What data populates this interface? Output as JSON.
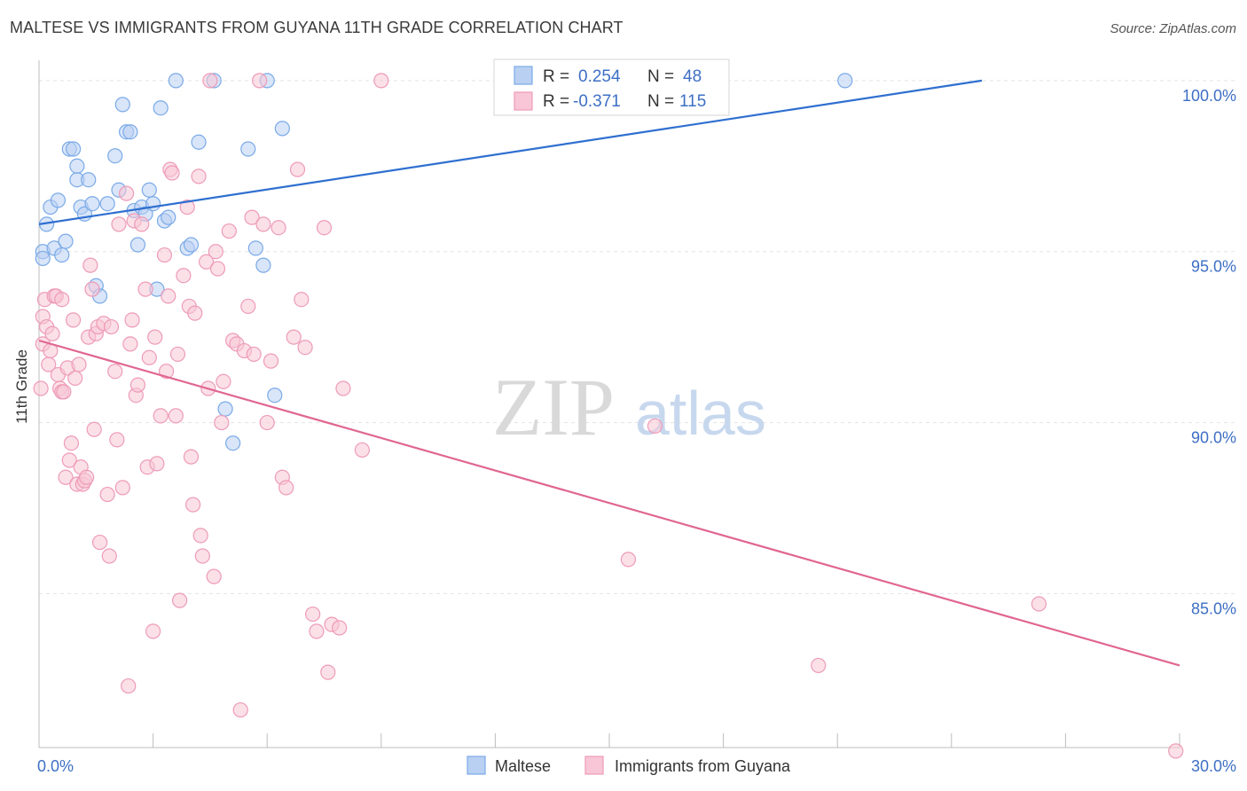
{
  "chart_data": {
    "type": "scatter",
    "title": "MALTESE VS IMMIGRANTS FROM GUYANA 11TH GRADE CORRELATION CHART",
    "source": "Source: ZipAtlas.com",
    "xlabel": "",
    "ylabel": "11th Grade",
    "xlim": [
      0,
      30
    ],
    "ylim": [
      80.5,
      100.8
    ],
    "x_tick_labels": [
      "0.0%",
      "30.0%"
    ],
    "y_ticks": [
      {
        "value": 100,
        "label": "100.0%"
      },
      {
        "value": 95,
        "label": "95.0%"
      },
      {
        "value": 90,
        "label": "90.0%"
      },
      {
        "value": 85,
        "label": "85.0%"
      }
    ],
    "watermark": {
      "zip": "ZIP",
      "atlas": "atlas"
    },
    "legend_top": [
      {
        "r_label": "R =",
        "r_value": "0.254",
        "n_label": "N =",
        "n_value": "48"
      },
      {
        "r_label": "R =",
        "r_value": "-0.371",
        "n_label": "N =",
        "n_value": "115"
      }
    ],
    "series": [
      {
        "name": "Maltese",
        "color": "#7aaae8",
        "fill": "#b9d0f2",
        "line_color": "#2f6fd0",
        "trend": [
          [
            0,
            95.8
          ],
          [
            24.8,
            100.0
          ]
        ],
        "points": [
          [
            0.1,
            95.0
          ],
          [
            0.1,
            94.8
          ],
          [
            0.2,
            95.8
          ],
          [
            0.3,
            96.3
          ],
          [
            0.4,
            95.1
          ],
          [
            0.5,
            96.5
          ],
          [
            0.6,
            94.9
          ],
          [
            0.7,
            95.3
          ],
          [
            0.8,
            98.0
          ],
          [
            0.9,
            98.0
          ],
          [
            1.0,
            97.1
          ],
          [
            1.0,
            97.5
          ],
          [
            1.1,
            96.3
          ],
          [
            1.2,
            96.1
          ],
          [
            1.3,
            97.1
          ],
          [
            1.4,
            96.4
          ],
          [
            1.5,
            94.0
          ],
          [
            1.6,
            93.7
          ],
          [
            1.8,
            96.4
          ],
          [
            2.0,
            97.8
          ],
          [
            2.1,
            96.8
          ],
          [
            2.2,
            99.3
          ],
          [
            2.3,
            98.5
          ],
          [
            2.4,
            98.5
          ],
          [
            2.5,
            96.2
          ],
          [
            2.6,
            95.2
          ],
          [
            2.7,
            96.3
          ],
          [
            2.8,
            96.1
          ],
          [
            2.9,
            96.8
          ],
          [
            3.0,
            96.4
          ],
          [
            3.1,
            93.9
          ],
          [
            3.2,
            99.2
          ],
          [
            3.3,
            95.9
          ],
          [
            3.4,
            96.0
          ],
          [
            3.6,
            100.0
          ],
          [
            3.9,
            95.1
          ],
          [
            4.0,
            95.2
          ],
          [
            4.2,
            98.2
          ],
          [
            4.6,
            100.0
          ],
          [
            4.9,
            90.4
          ],
          [
            5.1,
            89.4
          ],
          [
            5.5,
            98.0
          ],
          [
            5.7,
            95.1
          ],
          [
            5.9,
            94.6
          ],
          [
            6.0,
            100.0
          ],
          [
            6.2,
            90.8
          ],
          [
            6.4,
            98.6
          ],
          [
            21.2,
            100.0
          ]
        ]
      },
      {
        "name": "Immigrants from Guyana",
        "color": "#ee9bb8",
        "fill": "#f8c6d6",
        "line_color": "#e06692",
        "trend": [
          [
            0,
            92.4
          ],
          [
            30,
            82.9
          ]
        ],
        "points": [
          [
            0.05,
            91.0
          ],
          [
            0.1,
            92.3
          ],
          [
            0.1,
            93.1
          ],
          [
            0.15,
            93.6
          ],
          [
            0.2,
            92.8
          ],
          [
            0.25,
            91.7
          ],
          [
            0.3,
            92.1
          ],
          [
            0.35,
            92.6
          ],
          [
            0.4,
            93.7
          ],
          [
            0.45,
            93.7
          ],
          [
            0.5,
            91.4
          ],
          [
            0.55,
            91.0
          ],
          [
            0.6,
            90.9
          ],
          [
            0.65,
            90.9
          ],
          [
            0.7,
            88.4
          ],
          [
            0.75,
            91.6
          ],
          [
            0.8,
            88.9
          ],
          [
            0.85,
            89.4
          ],
          [
            0.9,
            93.0
          ],
          [
            0.95,
            91.3
          ],
          [
            1.0,
            88.2
          ],
          [
            1.05,
            91.7
          ],
          [
            1.1,
            88.7
          ],
          [
            1.15,
            88.2
          ],
          [
            1.2,
            88.3
          ],
          [
            1.25,
            88.4
          ],
          [
            1.3,
            92.5
          ],
          [
            1.35,
            94.6
          ],
          [
            1.4,
            93.9
          ],
          [
            1.45,
            89.8
          ],
          [
            1.5,
            92.6
          ],
          [
            1.55,
            92.8
          ],
          [
            1.6,
            86.5
          ],
          [
            1.7,
            92.9
          ],
          [
            1.8,
            87.9
          ],
          [
            1.85,
            86.1
          ],
          [
            1.9,
            92.8
          ],
          [
            2.0,
            91.5
          ],
          [
            2.05,
            89.5
          ],
          [
            2.1,
            95.8
          ],
          [
            2.2,
            88.1
          ],
          [
            2.3,
            96.7
          ],
          [
            2.35,
            82.3
          ],
          [
            2.4,
            92.3
          ],
          [
            2.45,
            93.0
          ],
          [
            2.5,
            95.9
          ],
          [
            2.55,
            90.8
          ],
          [
            2.6,
            91.1
          ],
          [
            2.7,
            95.8
          ],
          [
            2.8,
            93.9
          ],
          [
            2.85,
            88.7
          ],
          [
            2.9,
            91.9
          ],
          [
            3.0,
            83.9
          ],
          [
            3.05,
            92.5
          ],
          [
            3.1,
            88.8
          ],
          [
            3.2,
            90.2
          ],
          [
            3.3,
            94.9
          ],
          [
            3.35,
            91.5
          ],
          [
            3.4,
            93.7
          ],
          [
            3.45,
            97.4
          ],
          [
            3.5,
            97.3
          ],
          [
            3.6,
            90.2
          ],
          [
            3.65,
            92.0
          ],
          [
            3.7,
            84.8
          ],
          [
            3.8,
            94.3
          ],
          [
            3.9,
            96.3
          ],
          [
            3.95,
            93.4
          ],
          [
            4.0,
            89.0
          ],
          [
            4.05,
            87.6
          ],
          [
            4.1,
            93.2
          ],
          [
            4.2,
            97.2
          ],
          [
            4.25,
            86.7
          ],
          [
            4.3,
            86.1
          ],
          [
            4.4,
            94.7
          ],
          [
            4.45,
            91.0
          ],
          [
            4.5,
            100.0
          ],
          [
            4.6,
            85.5
          ],
          [
            4.65,
            95.0
          ],
          [
            4.7,
            94.5
          ],
          [
            4.8,
            90.0
          ],
          [
            4.85,
            91.2
          ],
          [
            5.0,
            95.6
          ],
          [
            5.1,
            92.4
          ],
          [
            5.2,
            92.3
          ],
          [
            5.3,
            81.6
          ],
          [
            5.4,
            92.1
          ],
          [
            5.5,
            93.4
          ],
          [
            5.6,
            96.0
          ],
          [
            5.65,
            92.0
          ],
          [
            5.8,
            100.0
          ],
          [
            5.9,
            95.8
          ],
          [
            6.0,
            90.0
          ],
          [
            6.1,
            91.8
          ],
          [
            6.3,
            95.7
          ],
          [
            6.4,
            88.4
          ],
          [
            6.5,
            88.1
          ],
          [
            6.7,
            92.5
          ],
          [
            6.8,
            97.4
          ],
          [
            6.9,
            93.6
          ],
          [
            7.0,
            92.2
          ],
          [
            7.2,
            84.4
          ],
          [
            7.3,
            83.9
          ],
          [
            7.5,
            95.7
          ],
          [
            7.6,
            82.7
          ],
          [
            7.7,
            84.1
          ],
          [
            7.9,
            84.0
          ],
          [
            8.0,
            91.0
          ],
          [
            8.5,
            89.2
          ],
          [
            9.0,
            100.0
          ],
          [
            15.5,
            86.0
          ],
          [
            16.2,
            89.9
          ],
          [
            20.5,
            82.9
          ],
          [
            26.3,
            84.7
          ],
          [
            29.9,
            80.4
          ],
          [
            0.6,
            93.6
          ]
        ]
      }
    ],
    "legend_bottom": [
      "Maltese",
      "Immigrants from Guyana"
    ]
  }
}
